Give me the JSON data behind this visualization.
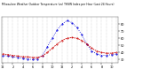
{
  "title": "Milwaukee Weather Outdoor Temperature (vs) THSW Index per Hour (Last 24 Hours)",
  "hours": [
    0,
    1,
    2,
    3,
    4,
    5,
    6,
    7,
    8,
    9,
    10,
    11,
    12,
    13,
    14,
    15,
    16,
    17,
    18,
    19,
    20,
    21,
    22,
    23
  ],
  "temp": [
    38,
    37,
    36,
    35,
    34,
    34,
    33,
    33,
    35,
    40,
    46,
    52,
    57,
    60,
    61,
    60,
    57,
    52,
    46,
    42,
    40,
    39,
    39,
    40
  ],
  "thsw": [
    36,
    35,
    34,
    33,
    32,
    31,
    30,
    31,
    36,
    48,
    60,
    72,
    80,
    85,
    82,
    75,
    65,
    52,
    42,
    38,
    36,
    36,
    37,
    38
  ],
  "temp_color": "#cc0000",
  "thsw_color": "#0000dd",
  "bg_color": "#ffffff",
  "plot_bg": "#ffffff",
  "grid_color": "#888888",
  "ylim_min": 25,
  "ylim_max": 90,
  "ytick_values": [
    30,
    40,
    50,
    60,
    70,
    80
  ],
  "ytick_labels": [
    "30",
    "40",
    "50",
    "60",
    "70",
    "80"
  ],
  "xtick_values": [
    0,
    2,
    4,
    6,
    8,
    10,
    12,
    14,
    16,
    18,
    20,
    22
  ],
  "xtick_labels": [
    "12",
    "2",
    "4",
    "6",
    "8",
    "10",
    "12",
    "2",
    "4",
    "6",
    "8",
    "10"
  ]
}
